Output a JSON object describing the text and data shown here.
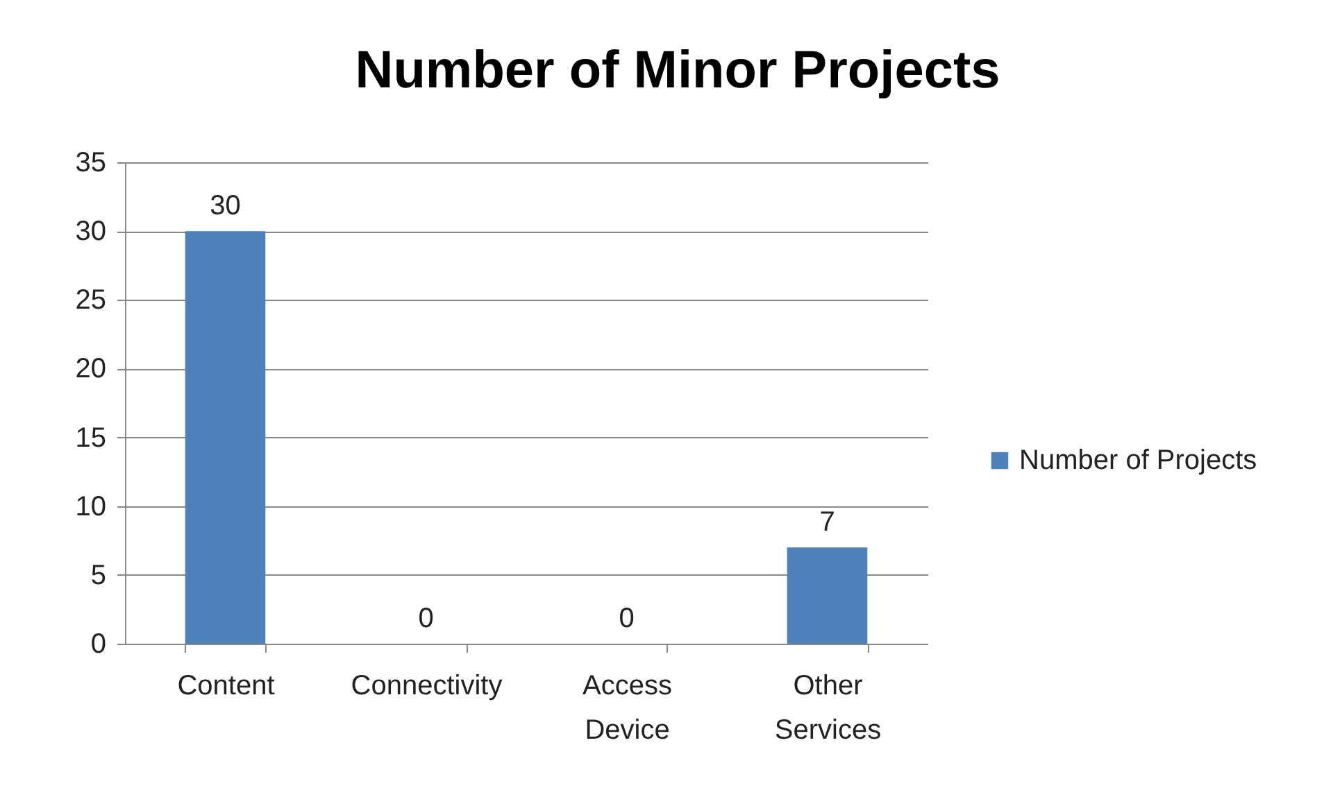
{
  "chart_data": {
    "type": "bar",
    "title": "Number of Minor Projects",
    "categories": [
      "Content",
      "Connectivity",
      "Access Device",
      "Other Services"
    ],
    "series": [
      {
        "name": "Number of Projects",
        "color": "#4f81bd",
        "values": [
          30,
          0,
          0,
          7
        ]
      }
    ],
    "ylim": [
      0,
      35
    ],
    "yticks": [
      0,
      5,
      10,
      15,
      20,
      25,
      30,
      35
    ],
    "grid": "y",
    "legend": "right",
    "data_labels": true
  }
}
